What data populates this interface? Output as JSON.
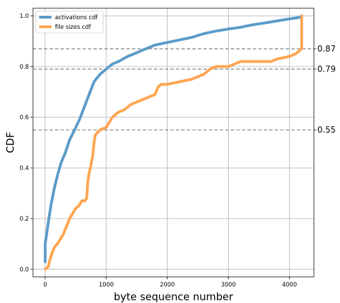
{
  "chart_data": {
    "type": "line",
    "xlabel": "byte sequence number",
    "ylabel": "CDF",
    "xlim": [
      -200,
      4400
    ],
    "ylim": [
      -0.03,
      1.03
    ],
    "xticks": [
      0,
      1000,
      2000,
      3000,
      4000
    ],
    "yticks": [
      0.0,
      0.2,
      0.4,
      0.6,
      0.8,
      1.0
    ],
    "grid": true,
    "legend_position": "upper-left",
    "series": [
      {
        "name": "activations cdf",
        "color": "#5b9bc8",
        "points": [
          [
            0,
            0.03
          ],
          [
            0,
            0.1
          ],
          [
            30,
            0.15
          ],
          [
            60,
            0.2
          ],
          [
            100,
            0.26
          ],
          [
            150,
            0.32
          ],
          [
            200,
            0.37
          ],
          [
            260,
            0.42
          ],
          [
            330,
            0.46
          ],
          [
            400,
            0.51
          ],
          [
            480,
            0.55
          ],
          [
            560,
            0.59
          ],
          [
            640,
            0.64
          ],
          [
            720,
            0.69
          ],
          [
            800,
            0.74
          ],
          [
            900,
            0.77
          ],
          [
            1000,
            0.79
          ],
          [
            1100,
            0.81
          ],
          [
            1200,
            0.82
          ],
          [
            1350,
            0.84
          ],
          [
            1500,
            0.855
          ],
          [
            1650,
            0.87
          ],
          [
            1800,
            0.885
          ],
          [
            2000,
            0.895
          ],
          [
            2200,
            0.905
          ],
          [
            2400,
            0.915
          ],
          [
            2600,
            0.93
          ],
          [
            2800,
            0.94
          ],
          [
            3000,
            0.948
          ],
          [
            3200,
            0.955
          ],
          [
            3400,
            0.965
          ],
          [
            3600,
            0.972
          ],
          [
            3800,
            0.98
          ],
          [
            4000,
            0.988
          ],
          [
            4200,
            0.995
          ],
          [
            4200,
            1.0
          ]
        ]
      },
      {
        "name": "file sizes cdf",
        "color": "#ffa552",
        "points": [
          [
            0,
            0.0
          ],
          [
            50,
            0.01
          ],
          [
            80,
            0.04
          ],
          [
            120,
            0.07
          ],
          [
            160,
            0.09
          ],
          [
            200,
            0.1
          ],
          [
            250,
            0.12
          ],
          [
            300,
            0.14
          ],
          [
            350,
            0.17
          ],
          [
            400,
            0.2
          ],
          [
            450,
            0.22
          ],
          [
            500,
            0.24
          ],
          [
            550,
            0.25
          ],
          [
            600,
            0.27
          ],
          [
            650,
            0.27
          ],
          [
            680,
            0.28
          ],
          [
            700,
            0.35
          ],
          [
            720,
            0.38
          ],
          [
            740,
            0.4
          ],
          [
            780,
            0.45
          ],
          [
            800,
            0.5
          ],
          [
            820,
            0.53
          ],
          [
            900,
            0.55
          ],
          [
            1000,
            0.56
          ],
          [
            1100,
            0.6
          ],
          [
            1200,
            0.62
          ],
          [
            1300,
            0.63
          ],
          [
            1400,
            0.65
          ],
          [
            1500,
            0.66
          ],
          [
            1600,
            0.67
          ],
          [
            1700,
            0.68
          ],
          [
            1800,
            0.69
          ],
          [
            1850,
            0.72
          ],
          [
            1900,
            0.73
          ],
          [
            2000,
            0.73
          ],
          [
            2200,
            0.74
          ],
          [
            2400,
            0.75
          ],
          [
            2500,
            0.76
          ],
          [
            2600,
            0.77
          ],
          [
            2700,
            0.79
          ],
          [
            2800,
            0.8
          ],
          [
            3000,
            0.8
          ],
          [
            3100,
            0.81
          ],
          [
            3200,
            0.82
          ],
          [
            3400,
            0.82
          ],
          [
            3700,
            0.82
          ],
          [
            3800,
            0.83
          ],
          [
            4000,
            0.84
          ],
          [
            4100,
            0.85
          ],
          [
            4200,
            0.87
          ],
          [
            4200,
            1.0
          ]
        ]
      }
    ],
    "reference_lines": [
      {
        "y": 0.87,
        "label": "0.87"
      },
      {
        "y": 0.79,
        "label": "0.79"
      },
      {
        "y": 0.55,
        "label": "0.55"
      }
    ]
  }
}
